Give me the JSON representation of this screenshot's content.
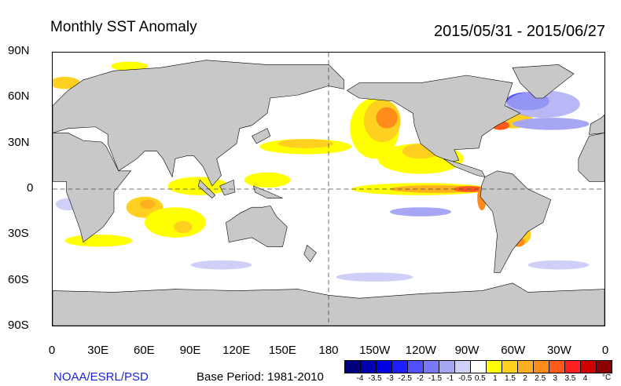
{
  "title": "Monthly SST Anomaly",
  "date_range": "2015/05/31 - 2015/06/27",
  "lat_labels": [
    "90N",
    "60N",
    "30N",
    "0",
    "30S",
    "60S",
    "90S"
  ],
  "lon_labels": [
    "0",
    "30E",
    "60E",
    "90E",
    "120E",
    "150E",
    "180",
    "150W",
    "120W",
    "90W",
    "60W",
    "30W",
    "0"
  ],
  "credit": "NOAA/ESRL/PSD",
  "base_period": "Base Period: 1981-2010",
  "colorbar": {
    "colors": [
      "#00007f",
      "#0000b0",
      "#0000e0",
      "#1e1eff",
      "#5050ff",
      "#7878f8",
      "#a6a6f4",
      "#cfcff8",
      "#ffffff",
      "#ffff00",
      "#ffd020",
      "#ffb020",
      "#ff8c1a",
      "#ff5a1a",
      "#ff2020",
      "#d00000",
      "#8b0000"
    ],
    "labels": [
      "-4",
      "-3.5",
      "-3",
      "-2.5",
      "-2",
      "-1.5",
      "-1",
      "-0.5",
      "0.5",
      "1",
      "1.5",
      "2",
      "2.5",
      "3",
      "3.5",
      "4"
    ],
    "unit": "°C"
  }
}
